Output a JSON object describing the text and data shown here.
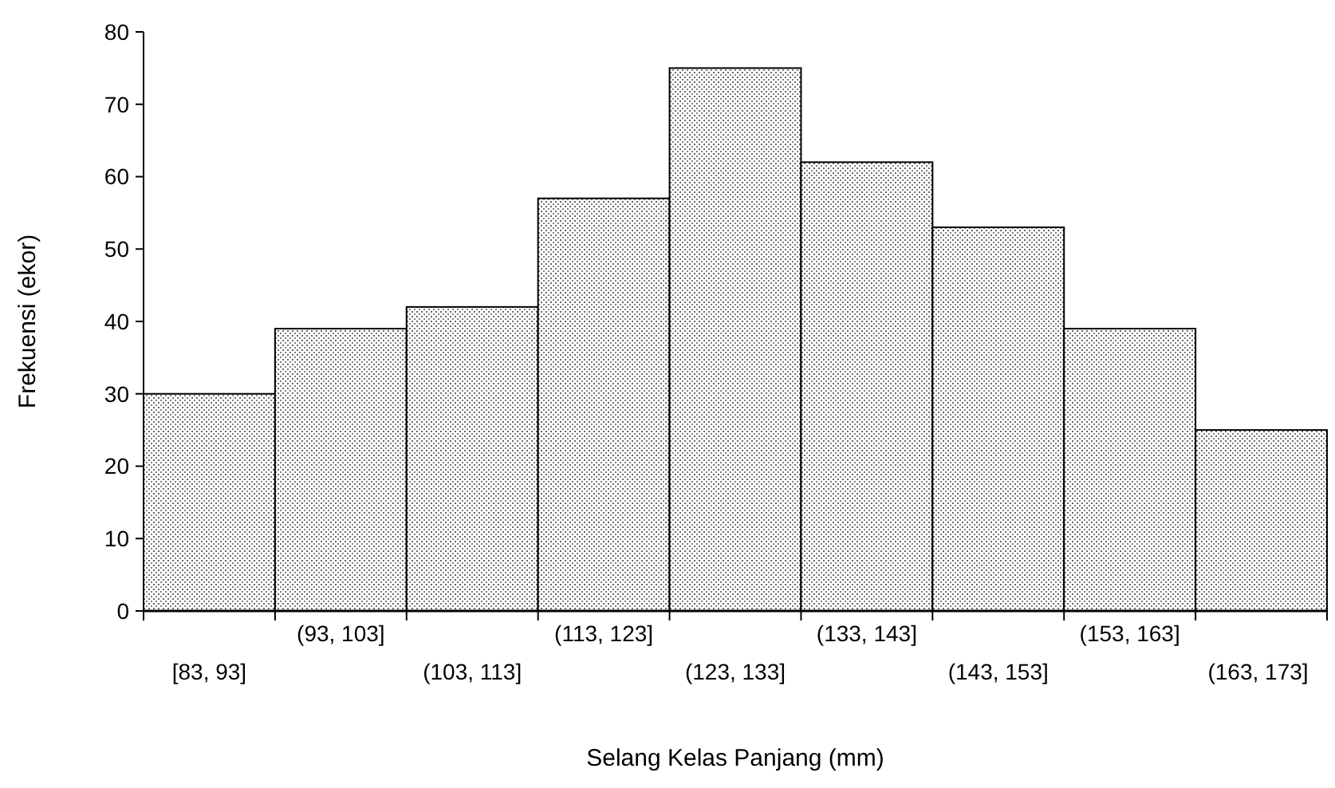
{
  "chart_data": {
    "type": "bar",
    "xlabel": "Selang Kelas Panjang (mm)",
    "ylabel": "Frekuensi (ekor)",
    "categories": [
      "[83, 93]",
      "(93, 103]",
      "(103, 113]",
      "(113, 123]",
      "(123, 133]",
      "(133, 143]",
      "(143, 153]",
      "(153, 163]",
      "(163, 173]"
    ],
    "values": [
      30,
      39,
      42,
      57,
      75,
      62,
      53,
      39,
      25
    ],
    "color": "#000000",
    "ylim": [
      0,
      80
    ],
    "yticks": [
      0,
      10,
      20,
      30,
      40,
      50,
      60,
      70,
      80
    ],
    "grid": false
  }
}
